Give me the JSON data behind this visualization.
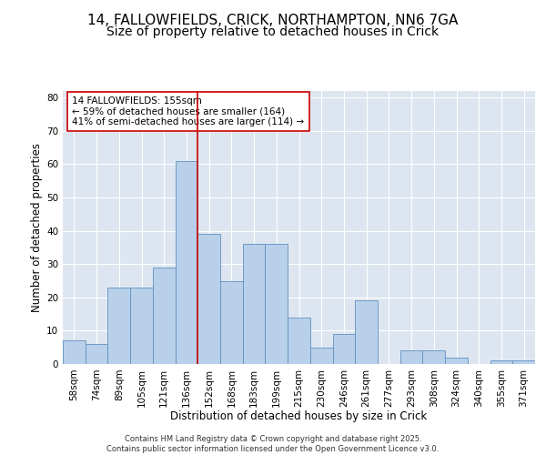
{
  "title_line1": "14, FALLOWFIELDS, CRICK, NORTHAMPTON, NN6 7GA",
  "title_line2": "Size of property relative to detached houses in Crick",
  "xlabel": "Distribution of detached houses by size in Crick",
  "ylabel": "Number of detached properties",
  "categories": [
    "58sqm",
    "74sqm",
    "89sqm",
    "105sqm",
    "121sqm",
    "136sqm",
    "152sqm",
    "168sqm",
    "183sqm",
    "199sqm",
    "215sqm",
    "230sqm",
    "246sqm",
    "261sqm",
    "277sqm",
    "293sqm",
    "308sqm",
    "324sqm",
    "340sqm",
    "355sqm",
    "371sqm"
  ],
  "bar_heights": [
    7,
    6,
    23,
    23,
    29,
    61,
    39,
    25,
    36,
    36,
    14,
    5,
    9,
    19,
    0,
    4,
    4,
    2,
    0,
    1,
    1
  ],
  "bar_color": "#b8d0ea",
  "bar_edge_color": "#6090c0",
  "background_color": "#dde6f0",
  "grid_color": "#ffffff",
  "vline_x": 6,
  "vline_color": "#cc0000",
  "annotation_text": "14 FALLOWFIELDS: 155sqm\n← 59% of detached houses are smaller (164)\n41% of semi-detached houses are larger (114) →",
  "annotation_box_color": "#ffffff",
  "annotation_box_edge": "#cc0000",
  "ylim": [
    0,
    82
  ],
  "yticks": [
    0,
    10,
    20,
    30,
    40,
    50,
    60,
    70,
    80
  ],
  "footer_text": "Contains HM Land Registry data © Crown copyright and database right 2025.\nContains public sector information licensed under the Open Government Licence v3.0.",
  "title_fontsize": 11,
  "subtitle_fontsize": 10,
  "label_fontsize": 8.5,
  "tick_fontsize": 7.5,
  "annotation_fontsize": 7.5,
  "footer_fontsize": 6
}
